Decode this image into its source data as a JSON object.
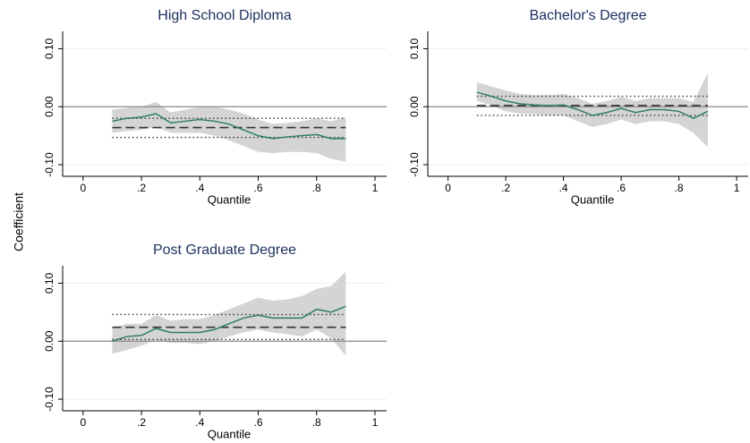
{
  "ylabel": "Coefficient",
  "chart_data": [
    {
      "type": "line",
      "title": "High School Diploma",
      "xlabel": "Quantile",
      "x": [
        0.1,
        0.15,
        0.2,
        0.25,
        0.3,
        0.35,
        0.4,
        0.45,
        0.5,
        0.55,
        0.6,
        0.65,
        0.7,
        0.75,
        0.8,
        0.85,
        0.9
      ],
      "values": [
        -0.025,
        -0.02,
        -0.018,
        -0.012,
        -0.028,
        -0.025,
        -0.022,
        -0.025,
        -0.03,
        -0.04,
        -0.05,
        -0.055,
        -0.052,
        -0.05,
        -0.048,
        -0.055,
        -0.055
      ],
      "lower": [
        -0.045,
        -0.042,
        -0.04,
        -0.035,
        -0.045,
        -0.045,
        -0.045,
        -0.05,
        -0.058,
        -0.068,
        -0.078,
        -0.08,
        -0.078,
        -0.078,
        -0.08,
        -0.09,
        -0.095
      ],
      "upper": [
        -0.005,
        -0.002,
        0.0,
        0.008,
        -0.01,
        -0.005,
        0.0,
        0.0,
        -0.005,
        -0.012,
        -0.022,
        -0.03,
        -0.028,
        -0.025,
        -0.02,
        -0.025,
        -0.018
      ],
      "ols": -0.036,
      "ols_ci": [
        -0.053,
        -0.02
      ],
      "refline": 0,
      "color": "#2e7d6b",
      "band_color": "#d4d4d4",
      "xlim": [
        -0.07,
        1.04
      ],
      "ylim": [
        -0.12,
        0.13
      ],
      "xticks": [
        0,
        {
          "value": 0.2,
          "label": ".2"
        },
        {
          "value": 0.4,
          "label": ".4"
        },
        {
          "value": 0.6,
          "label": ".6"
        },
        {
          "value": 0.8,
          "label": ".8"
        },
        1
      ],
      "yticks": [
        {
          "value": -0.1,
          "label": "-0.10"
        },
        {
          "value": 0,
          "label": "0.00"
        },
        {
          "value": 0.1,
          "label": "0.10"
        }
      ],
      "grid": true
    },
    {
      "type": "line",
      "title": "Bachelor's Degree",
      "xlabel": "Quantile",
      "x": [
        0.1,
        0.15,
        0.2,
        0.25,
        0.3,
        0.35,
        0.4,
        0.45,
        0.5,
        0.55,
        0.6,
        0.65,
        0.7,
        0.75,
        0.8,
        0.85,
        0.9
      ],
      "values": [
        0.025,
        0.018,
        0.01,
        0.005,
        0.003,
        0.002,
        0.003,
        -0.005,
        -0.015,
        -0.01,
        -0.003,
        -0.01,
        -0.005,
        -0.005,
        -0.008,
        -0.02,
        -0.008
      ],
      "lower": [
        0.01,
        0.002,
        -0.008,
        -0.012,
        -0.013,
        -0.015,
        -0.015,
        -0.025,
        -0.035,
        -0.03,
        -0.022,
        -0.03,
        -0.025,
        -0.025,
        -0.03,
        -0.045,
        -0.07
      ],
      "upper": [
        0.042,
        0.035,
        0.028,
        0.022,
        0.02,
        0.02,
        0.022,
        0.015,
        0.005,
        0.01,
        0.017,
        0.01,
        0.015,
        0.015,
        0.015,
        0.008,
        0.058
      ],
      "ols": 0.002,
      "ols_ci": [
        -0.015,
        0.018
      ],
      "refline": 0,
      "color": "#2e7d6b",
      "band_color": "#d4d4d4",
      "xlim": [
        -0.07,
        1.04
      ],
      "ylim": [
        -0.12,
        0.13
      ],
      "xticks": [
        0,
        {
          "value": 0.2,
          "label": ".2"
        },
        {
          "value": 0.4,
          "label": ".4"
        },
        {
          "value": 0.6,
          "label": ".6"
        },
        {
          "value": 0.8,
          "label": ".8"
        },
        1
      ],
      "yticks": [
        {
          "value": -0.1,
          "label": "-0.10"
        },
        {
          "value": 0,
          "label": "0.00"
        },
        {
          "value": 0.1,
          "label": "0.10"
        }
      ],
      "grid": true
    },
    {
      "type": "line",
      "title": "Post Graduate Degree",
      "xlabel": "Quantile",
      "x": [
        0.1,
        0.15,
        0.2,
        0.25,
        0.3,
        0.35,
        0.4,
        0.45,
        0.5,
        0.55,
        0.6,
        0.65,
        0.7,
        0.75,
        0.8,
        0.85,
        0.9
      ],
      "values": [
        0.0,
        0.008,
        0.01,
        0.022,
        0.015,
        0.015,
        0.015,
        0.02,
        0.03,
        0.04,
        0.045,
        0.04,
        0.04,
        0.04,
        0.055,
        0.05,
        0.06
      ],
      "lower": [
        -0.022,
        -0.015,
        -0.008,
        0.002,
        -0.003,
        -0.003,
        -0.005,
        0.0,
        0.008,
        0.015,
        0.02,
        0.015,
        0.012,
        0.008,
        0.02,
        0.005,
        -0.025
      ],
      "upper": [
        0.022,
        0.03,
        0.03,
        0.045,
        0.035,
        0.038,
        0.038,
        0.045,
        0.055,
        0.065,
        0.075,
        0.07,
        0.072,
        0.078,
        0.09,
        0.095,
        0.12
      ],
      "ols": 0.024,
      "ols_ci": [
        0.003,
        0.046
      ],
      "refline": 0,
      "color": "#2e7d6b",
      "band_color": "#d4d4d4",
      "xlim": [
        -0.07,
        1.04
      ],
      "ylim": [
        -0.12,
        0.13
      ],
      "xticks": [
        0,
        {
          "value": 0.2,
          "label": ".2"
        },
        {
          "value": 0.4,
          "label": ".4"
        },
        {
          "value": 0.6,
          "label": ".6"
        },
        {
          "value": 0.8,
          "label": ".8"
        },
        1
      ],
      "yticks": [
        {
          "value": -0.1,
          "label": "-0.10"
        },
        {
          "value": 0,
          "label": "0.00"
        },
        {
          "value": 0.1,
          "label": "0.10"
        }
      ],
      "grid": true
    }
  ]
}
